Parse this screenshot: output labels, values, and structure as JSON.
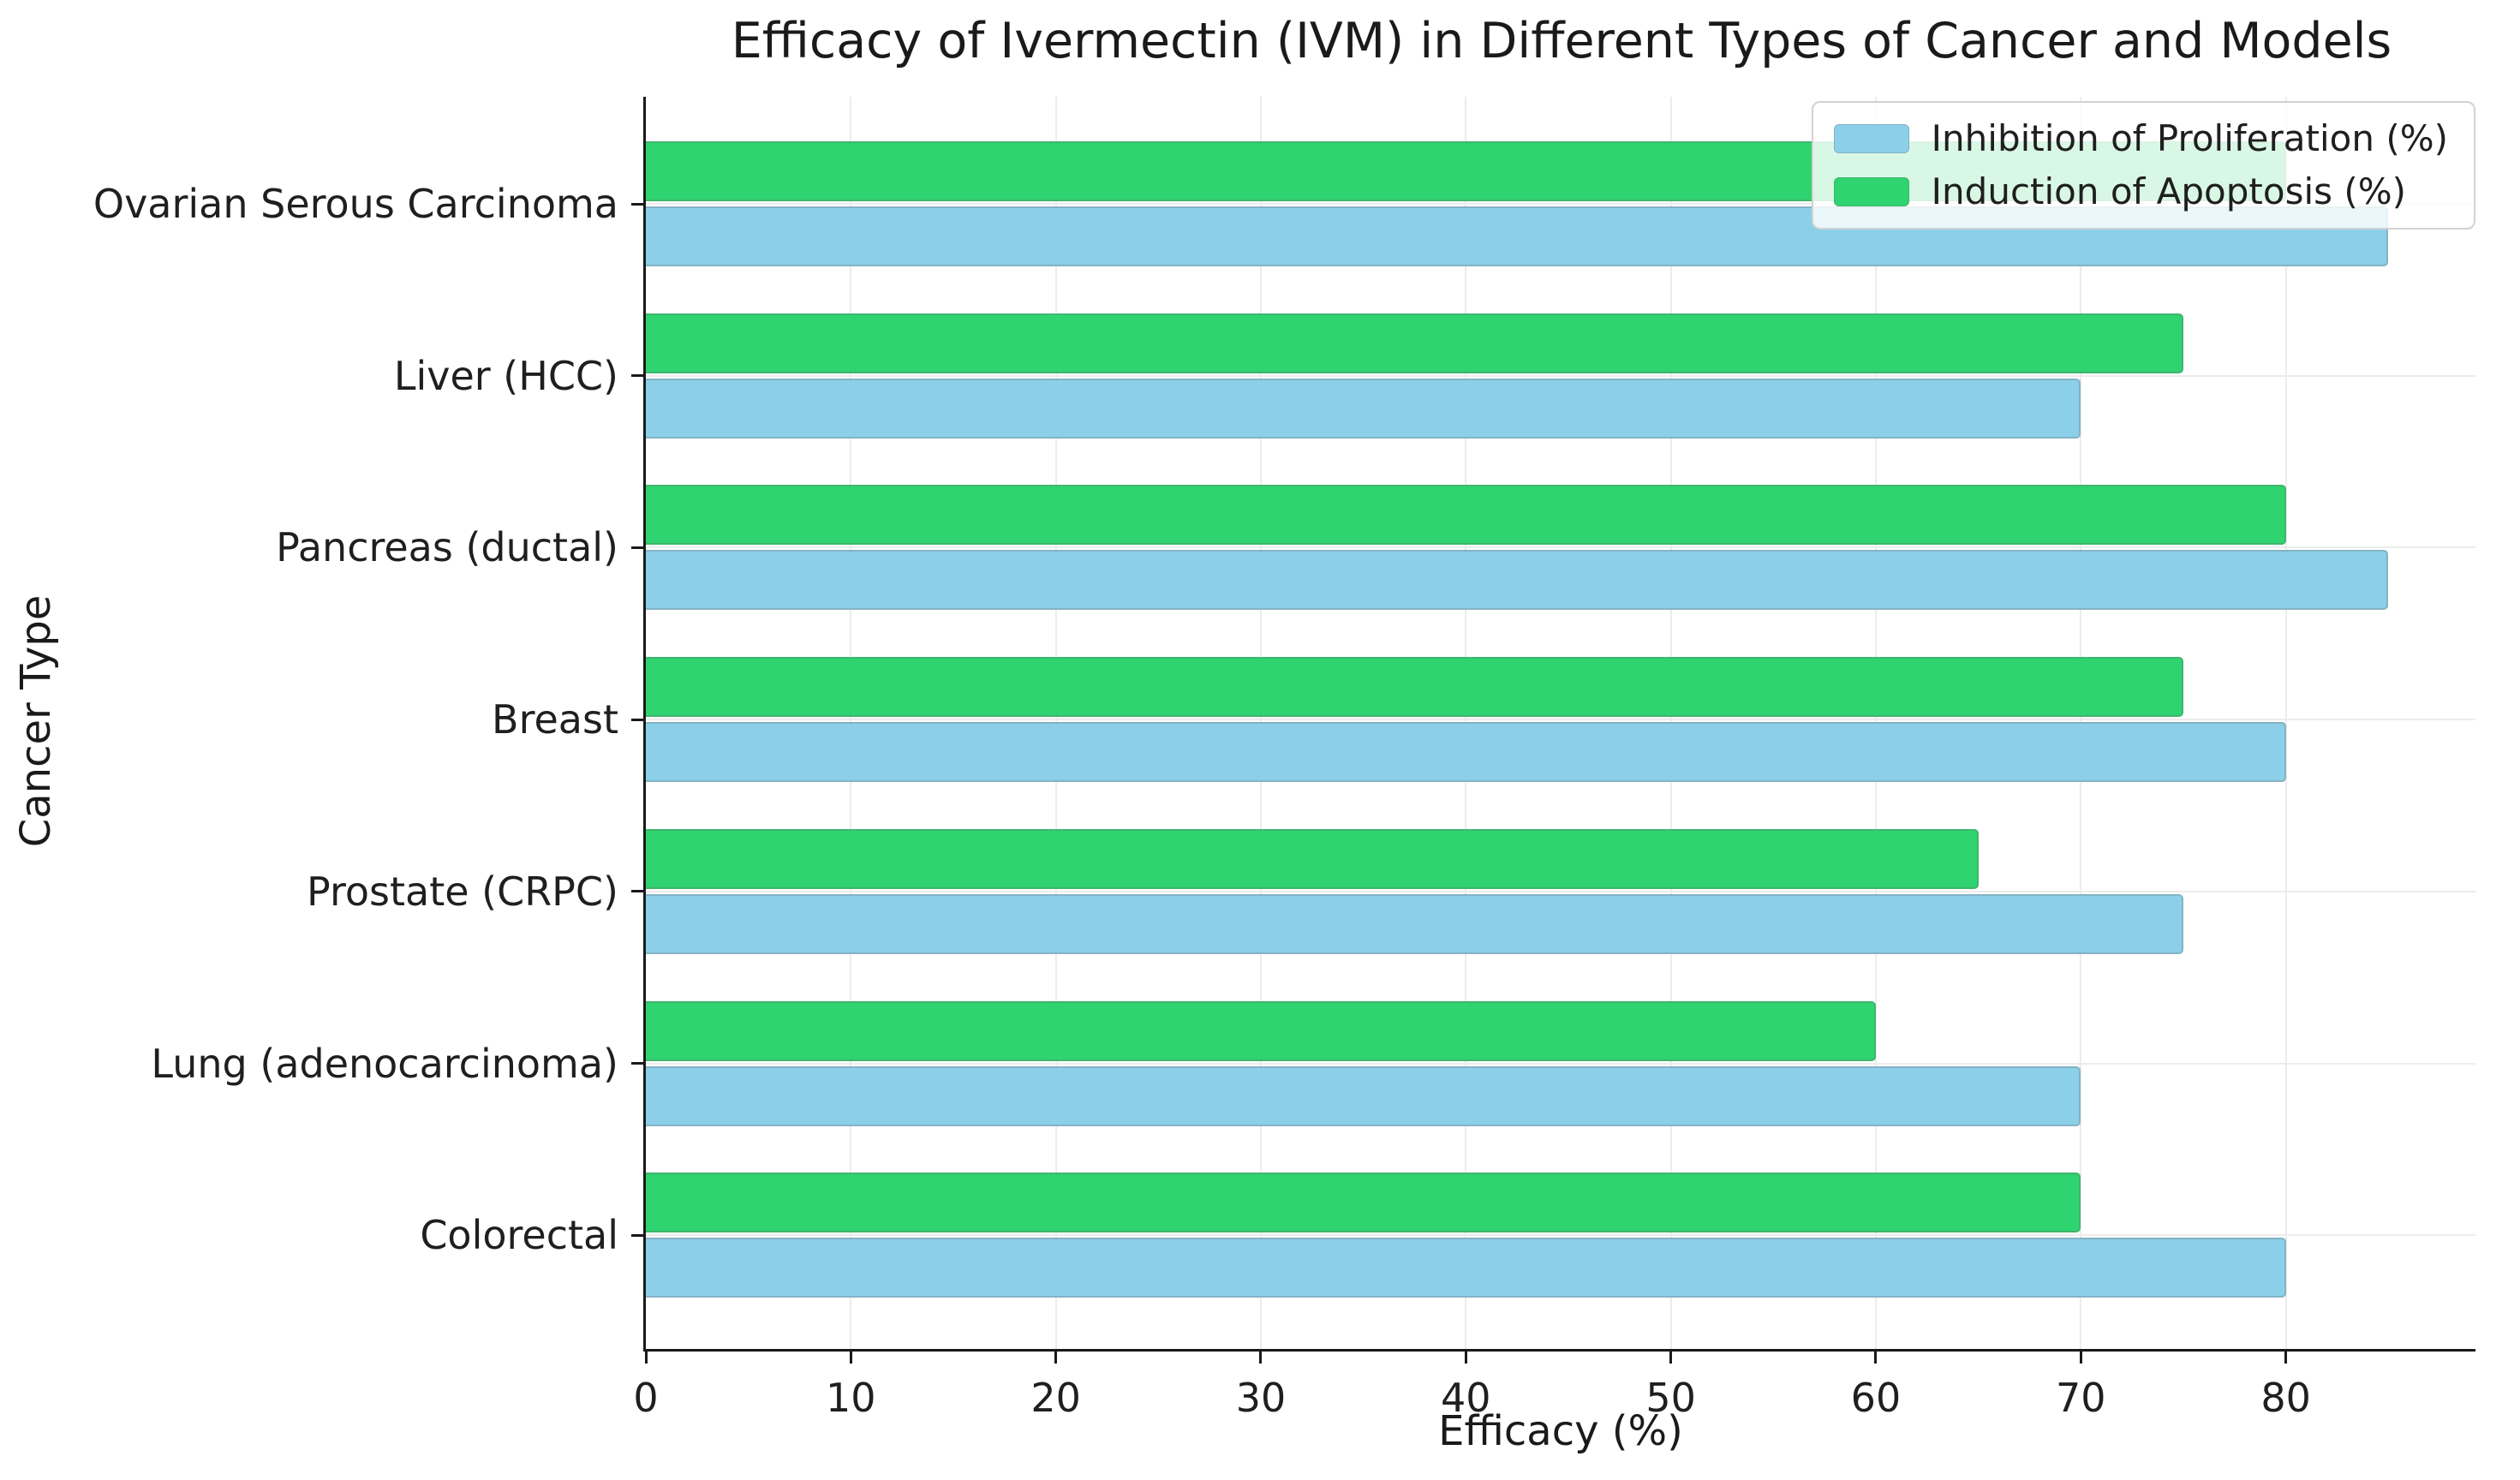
{
  "chart_data": {
    "type": "bar",
    "orientation": "horizontal",
    "title": "Efficacy of Ivermectin (IVM) in Different Types of Cancer and Models",
    "xlabel": "Efficacy (%)",
    "ylabel": "Cancer Type",
    "categories": [
      "Ovarian Serous Carcinoma",
      "Liver (HCC)",
      "Pancreas (ductal)",
      "Breast",
      "Prostate (CRPC)",
      "Lung (adenocarcinoma)",
      "Colorectal"
    ],
    "series": [
      {
        "name": "Inhibition of Proliferation (%)",
        "color": "#8CCFE8",
        "values": [
          85,
          70,
          85,
          80,
          75,
          70,
          80
        ]
      },
      {
        "name": "Induction of Apoptosis (%)",
        "color": "#2FD36F",
        "values": [
          80,
          75,
          80,
          75,
          65,
          60,
          70
        ]
      }
    ],
    "xlim": [
      0,
      89.25
    ],
    "xticks": [
      0,
      10,
      20,
      30,
      40,
      50,
      60,
      70,
      80
    ],
    "grid": true,
    "legend_position": "upper right"
  }
}
